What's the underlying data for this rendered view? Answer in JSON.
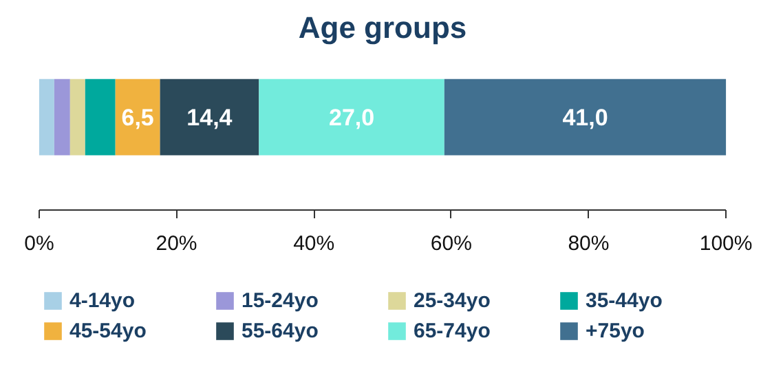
{
  "chart_data": {
    "type": "bar",
    "title": "Age groups",
    "orientation": "horizontal",
    "stacked": true,
    "legend": "bottom",
    "categories": [
      null
    ],
    "xlim": [
      0,
      100
    ],
    "xticks": [
      {
        "value": 0,
        "label": "0%"
      },
      {
        "value": 20,
        "label": "20%"
      },
      {
        "value": 40,
        "label": "40%"
      },
      {
        "value": 60,
        "label": "60%"
      },
      {
        "value": 80,
        "label": "80%"
      },
      {
        "value": 100,
        "label": "100%"
      }
    ],
    "series": [
      {
        "name": "4-14yo",
        "color": "#a8d0e6",
        "values": [
          2.2
        ]
      },
      {
        "name": "15-24yo",
        "color": "#9b97d9",
        "values": [
          2.3
        ]
      },
      {
        "name": "25-34yo",
        "color": "#ddd89a",
        "values": [
          2.2
        ]
      },
      {
        "name": "35-44yo",
        "color": "#00a99d",
        "values": [
          4.4
        ]
      },
      {
        "name": "45-54yo",
        "color": "#f0b23f",
        "values": [
          6.5
        ],
        "value_labels": [
          "6,5"
        ]
      },
      {
        "name": "55-64yo",
        "color": "#2b4a5a",
        "values": [
          14.4
        ],
        "value_labels": [
          "14,4"
        ]
      },
      {
        "name": "65-74yo",
        "color": "#72ebdc",
        "values": [
          27.0
        ],
        "value_labels": [
          "27,0"
        ]
      },
      {
        "name": "+75yo",
        "color": "#417090",
        "values": [
          41.0
        ],
        "value_labels": [
          "41,0"
        ]
      }
    ]
  }
}
